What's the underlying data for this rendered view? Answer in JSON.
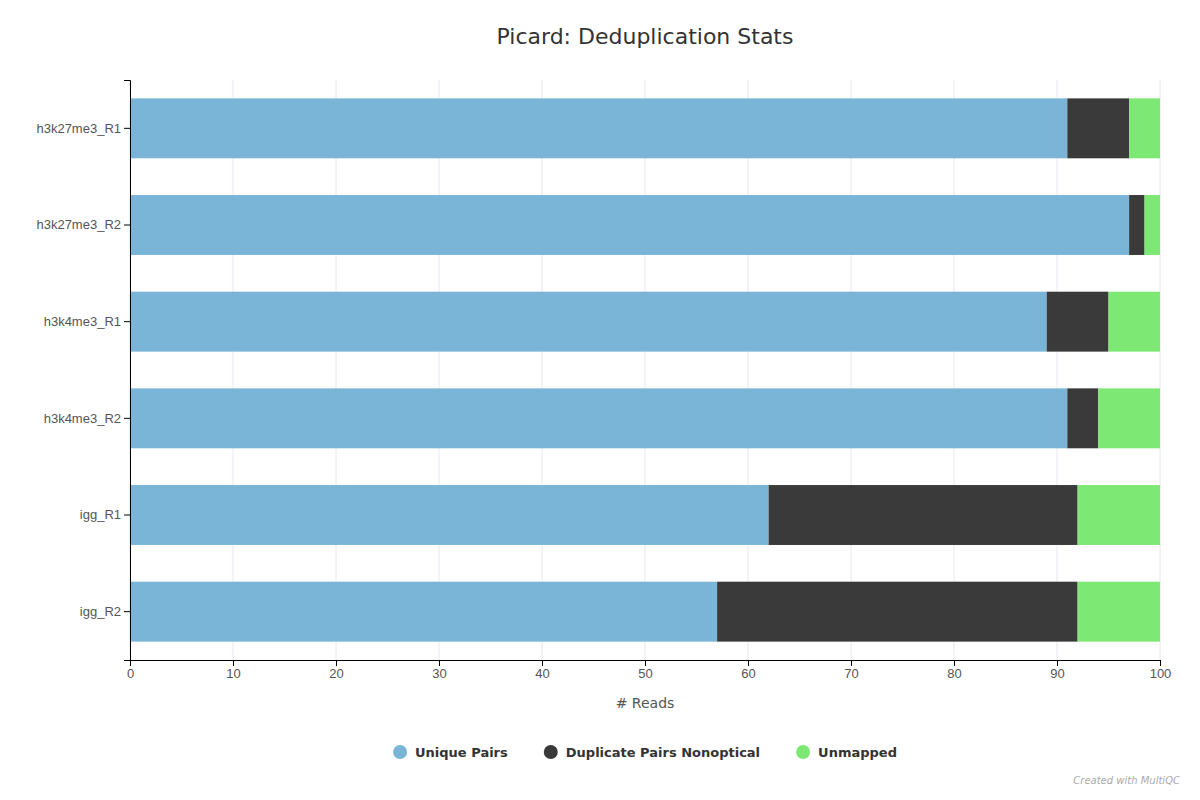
{
  "chart_data": {
    "type": "bar",
    "orientation": "horizontal",
    "stacked": true,
    "title": "Picard: Deduplication Stats",
    "categories": [
      "h3k27me3_R1",
      "h3k27me3_R2",
      "h3k4me3_R1",
      "h3k4me3_R2",
      "igg_R1",
      "igg_R2"
    ],
    "series": [
      {
        "name": "Unique Pairs",
        "color": "#7ab5d8",
        "values": [
          91.0,
          97.0,
          89.0,
          91.0,
          62.0,
          57.0
        ]
      },
      {
        "name": "Duplicate Pairs Nonoptical",
        "color": "#3a3a3a",
        "values": [
          6.0,
          1.5,
          6.0,
          3.0,
          30.0,
          35.0
        ]
      },
      {
        "name": "Unmapped",
        "color": "#7de874",
        "values": [
          3.0,
          1.5,
          5.0,
          6.0,
          8.0,
          8.0
        ]
      }
    ],
    "xlabel": "# Reads",
    "xlim": [
      0,
      100
    ],
    "xticks": [
      0,
      10,
      20,
      30,
      40,
      50,
      60,
      70,
      80,
      90,
      100
    ],
    "grid": true,
    "legend": "bottom",
    "annotations": [
      "Created with MultiQC"
    ]
  }
}
